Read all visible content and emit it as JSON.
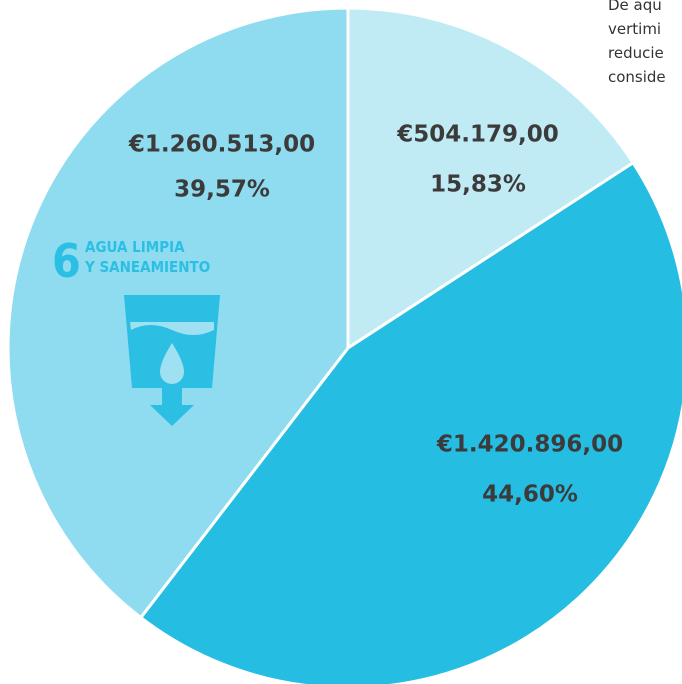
{
  "chart_data": {
    "type": "pie",
    "values": [
      15.83,
      44.6,
      39.57
    ],
    "value_labels": [
      "15,83%",
      "44,60%",
      "39,57%"
    ],
    "amounts": [
      504179,
      1420896,
      1260513
    ],
    "amount_labels": [
      "€504.179,00",
      "€1.420.896,00",
      "€1.260.513,00"
    ],
    "colors": [
      "#c0ebf5",
      "#26bde2",
      "#8fdbef"
    ],
    "icon": {
      "number": "6",
      "line1": "AGUA LIMPIA",
      "line2": "Y SANEAMIENTO"
    },
    "annotations": [
      "De aqu",
      "vertimi",
      "reducie",
      "conside"
    ]
  }
}
